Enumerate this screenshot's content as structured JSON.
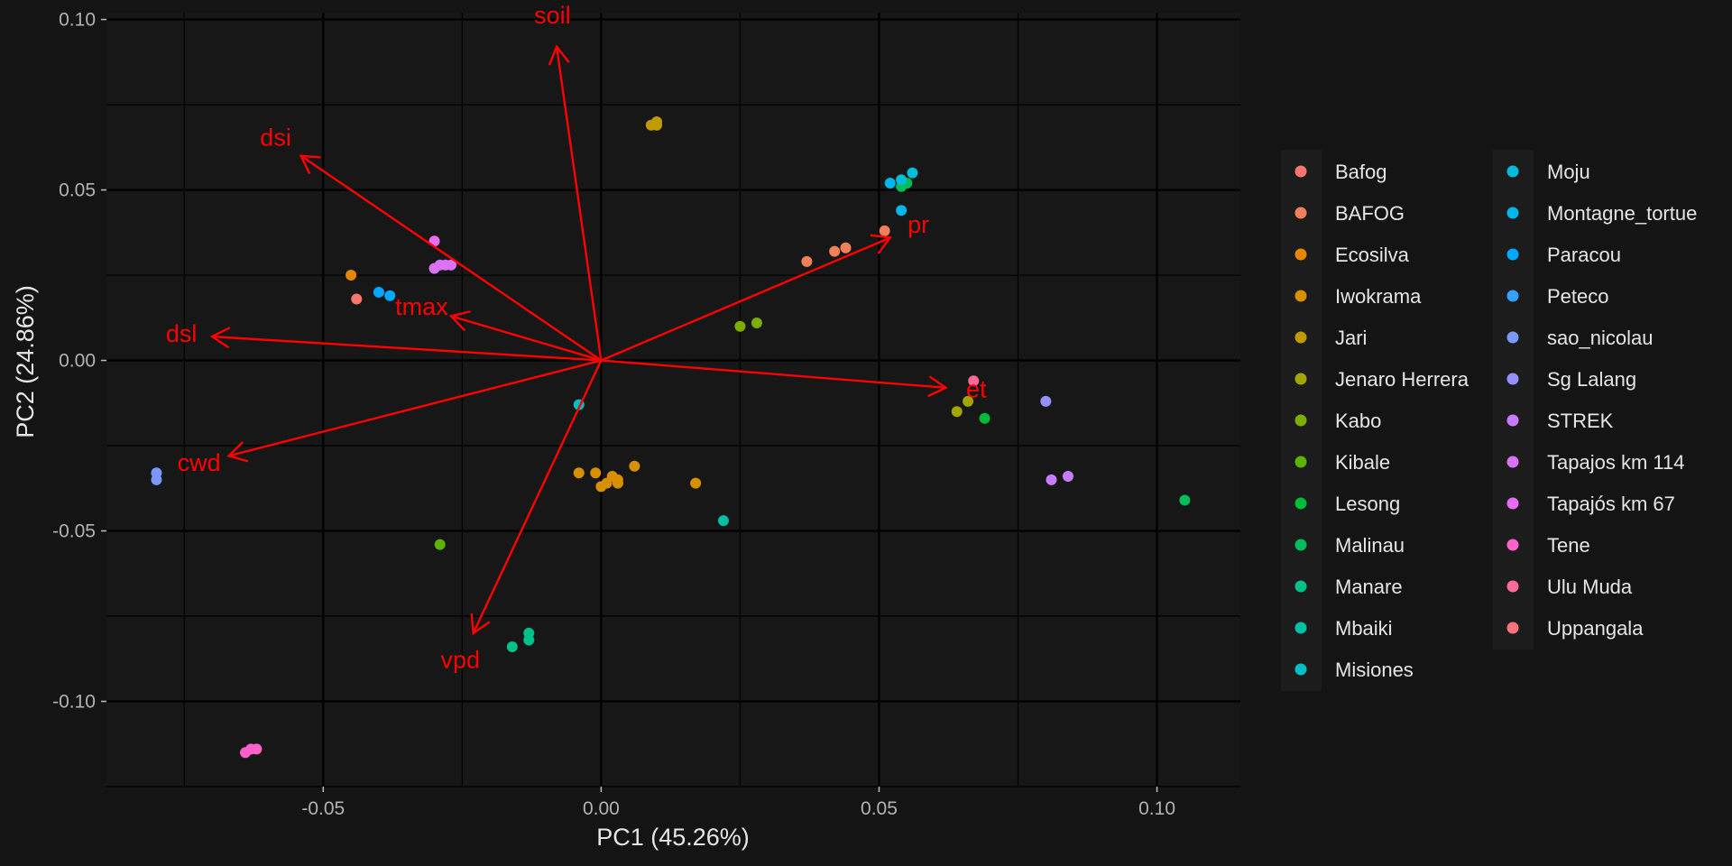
{
  "chart_data": {
    "type": "scatter",
    "title": "",
    "xlabel": "PC1 (45.26%)",
    "ylabel": "PC2 (24.86%)",
    "xlim": [
      -0.089,
      0.115
    ],
    "ylim": [
      -0.125,
      0.102
    ],
    "x_ticks": [
      {
        "value": -0.05,
        "label": "-0.05"
      },
      {
        "value": 0,
        "label": "0.00"
      },
      {
        "value": 0.05,
        "label": "0.05"
      },
      {
        "value": 0.1,
        "label": "0.10"
      }
    ],
    "y_ticks": [
      {
        "value": 0.1,
        "label": "0.10"
      },
      {
        "value": 0.05,
        "label": "0.05"
      },
      {
        "value": 0,
        "label": "0.00"
      },
      {
        "value": -0.05,
        "label": "-0.05"
      },
      {
        "value": -0.1,
        "label": "-0.10"
      }
    ],
    "grid": true,
    "legend_position": "right",
    "arrow_color": "#FF0000",
    "arrows": [
      {
        "label": "soil",
        "x": -0.008,
        "y": 0.092
      },
      {
        "label": "dsi",
        "x": -0.054,
        "y": 0.06
      },
      {
        "label": "pr",
        "x": 0.052,
        "y": 0.036
      },
      {
        "label": "tmax",
        "x": -0.027,
        "y": 0.013
      },
      {
        "label": "dsl",
        "x": -0.07,
        "y": 0.007
      },
      {
        "label": "et",
        "x": 0.062,
        "y": -0.008
      },
      {
        "label": "cwd",
        "x": -0.067,
        "y": -0.028
      },
      {
        "label": "vpd",
        "x": -0.023,
        "y": -0.08
      }
    ],
    "series": [
      {
        "name": "Bafog",
        "color": "#F8766D",
        "points": [
          [
            -0.044,
            0.018
          ]
        ]
      },
      {
        "name": "BAFOG",
        "color": "#F1805A",
        "points": [
          [
            0.037,
            0.029
          ],
          [
            0.042,
            0.032
          ],
          [
            0.044,
            0.033
          ],
          [
            0.051,
            0.038
          ]
        ]
      },
      {
        "name": "Ecosilva",
        "color": "#E58700",
        "points": [
          [
            -0.045,
            0.025
          ]
        ]
      },
      {
        "name": "Iwokrama",
        "color": "#D89000",
        "points": [
          [
            -0.004,
            -0.033
          ],
          [
            -0.001,
            -0.033
          ],
          [
            0.0,
            -0.037
          ],
          [
            0.001,
            -0.036
          ],
          [
            0.002,
            -0.034
          ],
          [
            0.003,
            -0.035
          ],
          [
            0.003,
            -0.036
          ],
          [
            0.006,
            -0.031
          ],
          [
            0.017,
            -0.036
          ]
        ]
      },
      {
        "name": "Jari",
        "color": "#C09B00",
        "points": [
          [
            0.009,
            0.069
          ],
          [
            0.01,
            0.07
          ],
          [
            0.01,
            0.069
          ]
        ]
      },
      {
        "name": "Jenaro Herrera",
        "color": "#A3A500",
        "points": [
          [
            0.064,
            -0.015
          ],
          [
            0.066,
            -0.012
          ]
        ]
      },
      {
        "name": "Kabo",
        "color": "#7CAE00",
        "points": [
          [
            0.025,
            0.01
          ],
          [
            0.028,
            0.011
          ]
        ]
      },
      {
        "name": "Kibale",
        "color": "#5BB300",
        "points": [
          [
            -0.029,
            -0.054
          ]
        ]
      },
      {
        "name": "Lesong",
        "color": "#00BA38",
        "points": [
          [
            0.069,
            -0.017
          ]
        ]
      },
      {
        "name": "Malinau",
        "color": "#00BD5C",
        "points": [
          [
            0.105,
            -0.041
          ],
          [
            0.054,
            0.051
          ],
          [
            0.055,
            0.052
          ]
        ]
      },
      {
        "name": "Manare",
        "color": "#00C08B",
        "points": [
          [
            -0.013,
            -0.08
          ],
          [
            -0.013,
            -0.082
          ],
          [
            -0.016,
            -0.084
          ]
        ]
      },
      {
        "name": "Mbaiki",
        "color": "#00BFA4",
        "points": [
          [
            0.022,
            -0.047
          ]
        ]
      },
      {
        "name": "Misiones",
        "color": "#00BFC4",
        "points": [
          [
            -0.004,
            -0.013
          ]
        ]
      },
      {
        "name": "Moju",
        "color": "#00BCD8",
        "points": [
          [
            0.054,
            0.053
          ],
          [
            0.056,
            0.055
          ]
        ]
      },
      {
        "name": "Montagne_tortue",
        "color": "#00B6EB",
        "points": [
          [
            0.052,
            0.052
          ],
          [
            0.054,
            0.044
          ]
        ]
      },
      {
        "name": "Paracou",
        "color": "#00A9FF",
        "points": [
          [
            -0.04,
            0.02
          ],
          [
            -0.038,
            0.019
          ]
        ]
      },
      {
        "name": "Peteco",
        "color": "#35A2FF",
        "points": []
      },
      {
        "name": "sao_nicolau",
        "color": "#7997FF",
        "points": [
          [
            -0.08,
            -0.033
          ],
          [
            -0.08,
            -0.035
          ]
        ]
      },
      {
        "name": "Sg Lalang",
        "color": "#9590FF",
        "points": [
          [
            0.08,
            -0.012
          ]
        ]
      },
      {
        "name": "STREK",
        "color": "#C77CFF",
        "points": [
          [
            0.081,
            -0.035
          ],
          [
            0.084,
            -0.034
          ]
        ]
      },
      {
        "name": "Tapajos km 114",
        "color": "#DC71FA",
        "points": [
          [
            -0.03,
            0.027
          ],
          [
            -0.029,
            0.028
          ],
          [
            -0.028,
            0.028
          ],
          [
            -0.027,
            0.028
          ]
        ]
      },
      {
        "name": "Tapajós km 67",
        "color": "#E76BF3",
        "points": [
          [
            -0.03,
            0.035
          ]
        ]
      },
      {
        "name": "Tene",
        "color": "#FF61CC",
        "points": [
          [
            -0.064,
            -0.115
          ],
          [
            -0.062,
            -0.114
          ],
          [
            -0.063,
            -0.114
          ]
        ]
      },
      {
        "name": "Ulu Muda",
        "color": "#FF6A98",
        "points": [
          [
            0.067,
            -0.006
          ]
        ]
      },
      {
        "name": "Uppangala",
        "color": "#FC717F",
        "points": []
      }
    ]
  }
}
